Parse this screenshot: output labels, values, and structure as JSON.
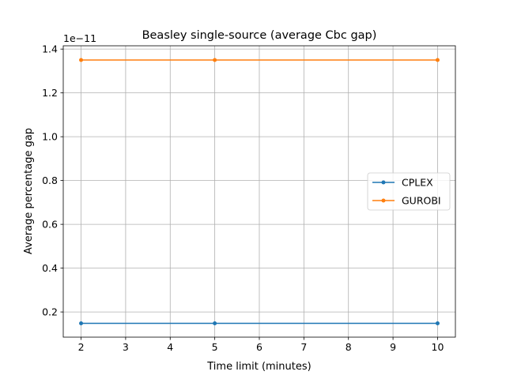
{
  "chart_data": {
    "type": "line",
    "title": "Beasley single-source (average Cbc gap)",
    "xlabel": "Time limit (minutes)",
    "ylabel": "Average percentage gap",
    "y_offset_label": "1e−11",
    "xlim": [
      1.6,
      10.4
    ],
    "ylim": [
      0.085,
      1.415
    ],
    "x_ticks": [
      2,
      3,
      4,
      5,
      6,
      7,
      8,
      9,
      10
    ],
    "y_ticks": [
      0.2,
      0.4,
      0.6,
      0.8,
      1.0,
      1.2,
      1.4
    ],
    "y_tick_labels": [
      "0.2",
      "0.4",
      "0.6",
      "0.8",
      "1.0",
      "1.2",
      "1.4"
    ],
    "grid": true,
    "legend_position": "center-right",
    "x": [
      2,
      5,
      10
    ],
    "series": [
      {
        "name": "CPLEX",
        "color": "#1f77b4",
        "values": [
          0.148,
          0.148,
          0.148
        ]
      },
      {
        "name": "GUROBI",
        "color": "#ff7f0e",
        "values": [
          1.35,
          1.35,
          1.35
        ]
      }
    ]
  }
}
